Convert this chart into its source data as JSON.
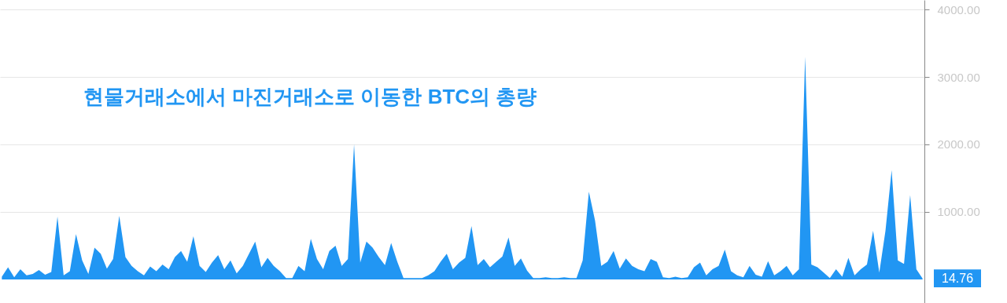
{
  "chart_data": {
    "type": "area",
    "title": "현물거래소에서 마진거래소로 이동한 BTC의 총량",
    "categories": [
      null,
      null,
      null,
      null,
      null,
      null,
      null,
      null,
      null,
      null,
      null,
      null,
      null,
      null,
      null,
      null,
      null,
      null,
      null,
      null,
      null,
      null,
      null,
      null,
      null,
      null,
      null,
      null,
      null,
      null,
      null,
      null,
      null,
      null,
      null,
      null,
      null,
      null,
      null,
      null,
      null,
      null,
      null,
      null,
      null,
      null,
      null,
      null,
      null,
      null,
      null,
      null,
      null,
      null,
      null,
      null,
      null,
      null,
      null,
      null,
      null,
      null,
      null,
      null,
      null,
      null,
      null,
      null,
      null,
      null,
      null,
      null,
      null,
      null,
      null,
      null,
      null,
      null,
      null,
      null,
      null,
      null,
      null,
      null,
      null,
      null,
      null,
      null,
      null,
      null,
      null,
      null,
      null,
      null,
      null,
      null,
      null,
      null,
      null,
      null,
      null,
      null,
      null,
      null,
      null,
      null,
      null,
      null,
      null,
      null,
      null,
      null,
      null,
      null,
      null,
      null,
      null,
      null,
      null,
      null,
      null,
      null,
      null,
      null,
      null,
      null,
      null,
      null,
      null,
      null,
      null,
      null,
      null,
      null,
      null,
      null,
      null,
      null,
      null,
      null,
      null,
      null,
      null,
      null,
      null,
      null,
      null,
      null,
      null,
      null
    ],
    "series": [
      {
        "color": "#2196f3",
        "values": [
          40,
          180,
          30,
          150,
          60,
          80,
          140,
          70,
          110,
          930,
          60,
          120,
          670,
          280,
          80,
          470,
          380,
          160,
          300,
          940,
          330,
          200,
          120,
          60,
          190,
          120,
          220,
          150,
          330,
          420,
          260,
          640,
          200,
          110,
          250,
          360,
          150,
          280,
          90,
          200,
          380,
          560,
          180,
          320,
          200,
          120,
          20,
          20,
          200,
          120,
          600,
          300,
          150,
          420,
          500,
          200,
          300,
          2000,
          250,
          560,
          470,
          330,
          210,
          540,
          260,
          20,
          20,
          20,
          20,
          60,
          120,
          260,
          380,
          150,
          250,
          320,
          790,
          210,
          300,
          180,
          260,
          340,
          620,
          200,
          310,
          130,
          20,
          20,
          30,
          20,
          20,
          30,
          20,
          20,
          280,
          1300,
          870,
          200,
          260,
          420,
          160,
          310,
          200,
          150,
          120,
          300,
          260,
          30,
          20,
          40,
          20,
          30,
          180,
          250,
          60,
          150,
          200,
          440,
          120,
          60,
          30,
          200,
          70,
          40,
          270,
          60,
          120,
          200,
          60,
          150,
          3300,
          220,
          180,
          100,
          20,
          150,
          40,
          320,
          60,
          150,
          220,
          720,
          100,
          720,
          1620,
          280,
          230,
          1250,
          150,
          14.76
        ]
      }
    ],
    "ylim": [
      -350,
      4140
    ],
    "yticks": [
      {
        "value": 1000,
        "label": "1000.00"
      },
      {
        "value": 2000,
        "label": "2000.00"
      },
      {
        "value": 3000,
        "label": "3000.00"
      },
      {
        "value": 4000,
        "label": "4000.00"
      }
    ],
    "annotations": [
      "14.76"
    ],
    "grid": "y",
    "tick_labels": "y"
  }
}
